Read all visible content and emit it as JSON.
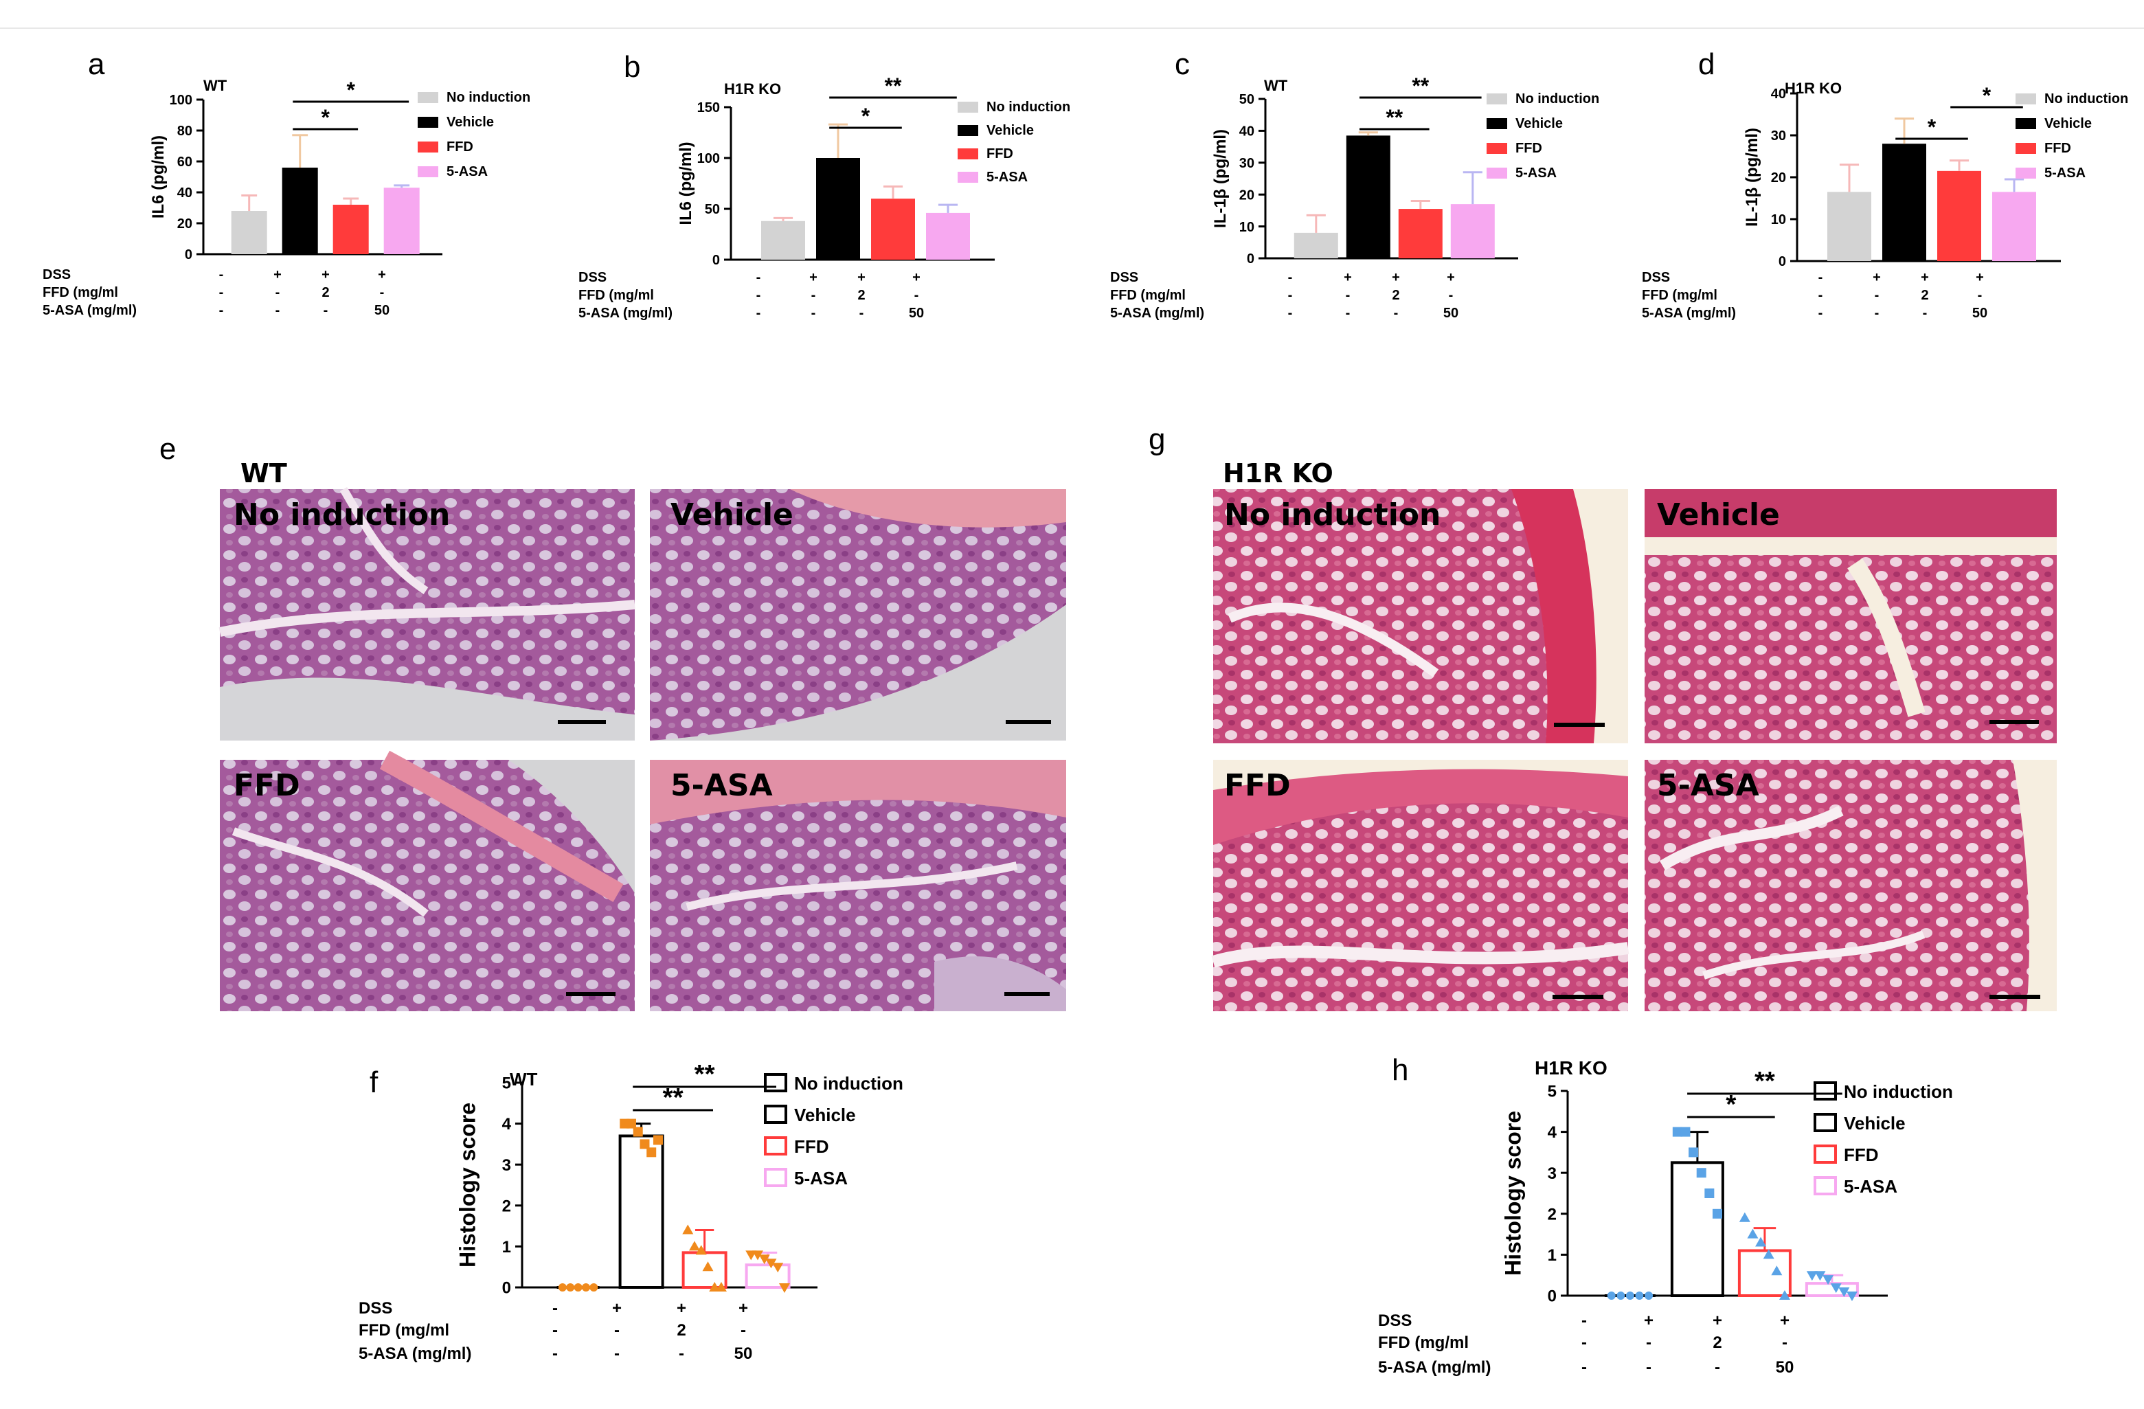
{
  "panel_labels": {
    "a": "a",
    "b": "b",
    "c": "c",
    "d": "d",
    "e": "e",
    "f": "f",
    "g": "g",
    "h": "h"
  },
  "colors": {
    "no_induction": "#d3d3d3",
    "vehicle": "#000000",
    "ffd": "#ff3b3b",
    "asa": "#f7a8f0",
    "orange_points": "#f08a1c",
    "blue_points": "#5aa3e6"
  },
  "condition_table": {
    "row_labels": [
      "DSS",
      "FFD (mg/ml",
      "5-ASA (mg/ml)"
    ],
    "rows": [
      [
        "-",
        "+",
        "+",
        "+"
      ],
      [
        "-",
        "-",
        "2",
        "-"
      ],
      [
        "-",
        "-",
        "-",
        "50"
      ]
    ]
  },
  "micrographs": {
    "e": {
      "title": "WT",
      "labels": [
        "No induction",
        "Vehicle",
        "FFD",
        "5-ASA"
      ]
    },
    "g": {
      "title": "H1R KO",
      "labels": [
        "No induction",
        "Vehicle",
        "FFD",
        "5-ASA"
      ]
    }
  },
  "chart_data": [
    {
      "panel": "a",
      "type": "bar",
      "title": "WT",
      "ylabel": "IL6 (pg/ml)",
      "ylim": [
        0,
        100
      ],
      "yticks": [
        0,
        20,
        40,
        60,
        80,
        100
      ],
      "categories": [
        "No induction",
        "Vehicle",
        "FFD",
        "5-ASA"
      ],
      "values": [
        28,
        56,
        32,
        43
      ],
      "errors": [
        10,
        21,
        4,
        1.5
      ],
      "legend": [
        "No induction",
        "Vehicle",
        "FFD",
        "5-ASA"
      ],
      "significance": [
        {
          "from": 1,
          "to": 2,
          "label": "*"
        },
        {
          "from": 1,
          "to": 3,
          "label": "*"
        }
      ]
    },
    {
      "panel": "b",
      "type": "bar",
      "title": "H1R KO",
      "ylabel": "IL6 (pg/ml)",
      "ylim": [
        0,
        150
      ],
      "yticks": [
        0,
        50,
        100,
        150
      ],
      "categories": [
        "No induction",
        "Vehicle",
        "FFD",
        "5-ASA"
      ],
      "values": [
        38,
        100,
        60,
        46
      ],
      "errors": [
        3,
        33,
        12,
        8
      ],
      "legend": [
        "No induction",
        "Vehicle",
        "FFD",
        "5-ASA"
      ],
      "significance": [
        {
          "from": 1,
          "to": 2,
          "label": "*"
        },
        {
          "from": 1,
          "to": 3,
          "label": "**"
        }
      ]
    },
    {
      "panel": "c",
      "type": "bar",
      "title": "WT",
      "ylabel": "IL-1β (pg/ml)",
      "ylim": [
        0,
        50
      ],
      "yticks": [
        0,
        10,
        20,
        30,
        40,
        50
      ],
      "categories": [
        "No induction",
        "Vehicle",
        "FFD",
        "5-ASA"
      ],
      "values": [
        8,
        38.5,
        15.5,
        17
      ],
      "errors": [
        5.5,
        1,
        2.5,
        10
      ],
      "legend": [
        "No induction",
        "Vehicle",
        "FFD",
        "5-ASA"
      ],
      "significance": [
        {
          "from": 1,
          "to": 2,
          "label": "**"
        },
        {
          "from": 1,
          "to": 3,
          "label": "**"
        }
      ]
    },
    {
      "panel": "d",
      "type": "bar",
      "title": "H1R KO",
      "ylabel": "IL-1β (pg/ml)",
      "ylim": [
        0,
        40
      ],
      "yticks": [
        0,
        10,
        20,
        30,
        40
      ],
      "categories": [
        "No induction",
        "Vehicle",
        "FFD",
        "5-ASA"
      ],
      "values": [
        16.5,
        28,
        21.5,
        16.5
      ],
      "errors": [
        6.5,
        6,
        2.5,
        3
      ],
      "legend": [
        "No induction",
        "Vehicle",
        "FFD",
        "5-ASA"
      ],
      "significance": [
        {
          "from": 1,
          "to": 2,
          "label": "*"
        },
        {
          "from": 2,
          "to": 3,
          "label": "*"
        }
      ]
    },
    {
      "panel": "f",
      "type": "bar",
      "title": "WT",
      "ylabel": "Histology score",
      "ylim": [
        0,
        5
      ],
      "yticks": [
        0,
        1,
        2,
        3,
        4,
        5
      ],
      "categories": [
        "No induction",
        "Vehicle",
        "FFD",
        "5-ASA"
      ],
      "values": [
        0,
        3.7,
        0.85,
        0.55
      ],
      "errors": [
        0,
        0.3,
        0.55,
        0.3
      ],
      "points": [
        [
          0,
          0,
          0,
          0,
          0
        ],
        [
          4,
          4,
          3.8,
          3.5,
          3.3,
          3.6
        ],
        [
          1.4,
          1,
          0.9,
          0.5,
          0,
          0
        ],
        [
          0.8,
          0.8,
          0.7,
          0.6,
          0.5,
          0
        ]
      ],
      "legend": [
        "No induction",
        "Vehicle",
        "FFD",
        "5-ASA"
      ],
      "significance": [
        {
          "from": 1,
          "to": 2,
          "label": "**"
        },
        {
          "from": 1,
          "to": 3,
          "label": "**"
        }
      ]
    },
    {
      "panel": "h",
      "type": "bar",
      "title": "H1R KO",
      "ylabel": "Histology score",
      "ylim": [
        0,
        5
      ],
      "yticks": [
        0,
        1,
        2,
        3,
        4,
        5
      ],
      "categories": [
        "No induction",
        "Vehicle",
        "FFD",
        "5-ASA"
      ],
      "values": [
        0,
        3.25,
        1.1,
        0.3
      ],
      "errors": [
        0,
        0.75,
        0.55,
        0.2
      ],
      "points": [
        [
          0,
          0,
          0,
          0,
          0
        ],
        [
          4,
          4,
          3.5,
          3,
          2.5,
          2
        ],
        [
          1.9,
          1.5,
          1.3,
          1,
          0.6,
          0
        ],
        [
          0.5,
          0.5,
          0.4,
          0.2,
          0.1,
          0
        ]
      ],
      "legend": [
        "No induction",
        "Vehicle",
        "FFD",
        "5-ASA"
      ],
      "significance": [
        {
          "from": 1,
          "to": 2,
          "label": "*"
        },
        {
          "from": 1,
          "to": 3,
          "label": "**"
        }
      ]
    }
  ]
}
